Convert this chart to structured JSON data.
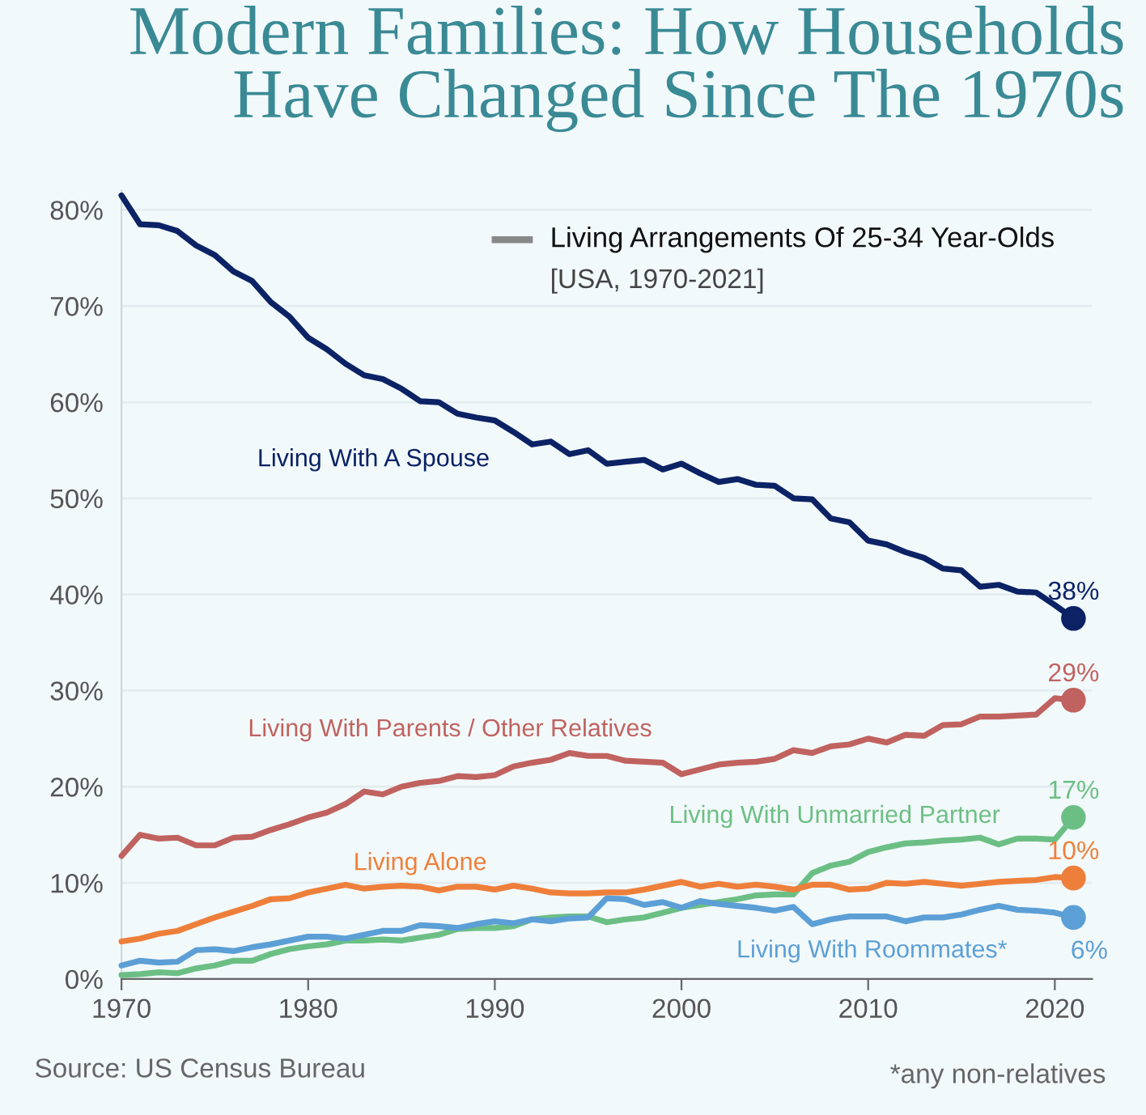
{
  "chart_data": {
    "type": "line",
    "title": "Modern Families: How Households\nHave Changed Since The 1970s",
    "subtitle": "Living Arrangements Of 25-34 Year-Olds",
    "annotations": [
      "[USA, 1970-2021]",
      "Source: US Census Bureau",
      "*any non-relatives"
    ],
    "x": [
      1970,
      1971,
      1972,
      1973,
      1974,
      1975,
      1976,
      1977,
      1978,
      1979,
      1980,
      1981,
      1982,
      1983,
      1984,
      1985,
      1986,
      1987,
      1988,
      1989,
      1990,
      1991,
      1992,
      1993,
      1994,
      1995,
      1996,
      1997,
      1998,
      1999,
      2000,
      2001,
      2002,
      2003,
      2004,
      2005,
      2006,
      2007,
      2008,
      2009,
      2010,
      2011,
      2012,
      2013,
      2014,
      2015,
      2016,
      2017,
      2018,
      2019,
      2020,
      2021
    ],
    "xlim": [
      1970,
      2022
    ],
    "xticks": [
      1970,
      1980,
      1990,
      2000,
      2010,
      2020
    ],
    "ylim": [
      0,
      82
    ],
    "yticks": [
      {
        "value": 0,
        "label": "0%"
      },
      {
        "value": 10,
        "label": "10%"
      },
      {
        "value": 20,
        "label": "20%"
      },
      {
        "value": 30,
        "label": "30%"
      },
      {
        "value": 40,
        "label": "40%"
      },
      {
        "value": 50,
        "label": "50%"
      },
      {
        "value": 60,
        "label": "60%"
      },
      {
        "value": 70,
        "label": "70%"
      },
      {
        "value": 80,
        "label": "80%"
      }
    ],
    "grid": "y",
    "legend": false,
    "line_style": "solid",
    "series": [
      {
        "name": "Living With A Spouse",
        "color": "#0b2265",
        "values": [
          81.5,
          78.5,
          78.4,
          77.8,
          76.3,
          75.3,
          73.6,
          72.6,
          70.4,
          68.9,
          66.7,
          65.5,
          64.0,
          62.8,
          62.4,
          61.4,
          60.1,
          60.0,
          58.8,
          58.4,
          58.1,
          56.9,
          55.6,
          55.9,
          54.6,
          55.0,
          53.6,
          53.8,
          54.0,
          53.0,
          53.6,
          52.6,
          51.7,
          52.0,
          51.4,
          51.3,
          50.0,
          49.9,
          47.9,
          47.5,
          45.6,
          45.2,
          44.4,
          43.8,
          42.7,
          42.5,
          40.8,
          41.0,
          40.3,
          40.2,
          38.9,
          37.5
        ],
        "value_labels": [
          null,
          null,
          null,
          null,
          null,
          null,
          null,
          null,
          null,
          null,
          null,
          null,
          null,
          null,
          null,
          null,
          null,
          null,
          null,
          null,
          null,
          null,
          null,
          null,
          null,
          null,
          null,
          null,
          null,
          null,
          null,
          null,
          null,
          null,
          null,
          null,
          null,
          null,
          null,
          null,
          null,
          null,
          null,
          null,
          null,
          null,
          null,
          null,
          null,
          null,
          null,
          "38%"
        ]
      },
      {
        "name": "Living With Parents / Other Relatives",
        "color": "#c0625f",
        "values": [
          12.8,
          15.0,
          14.6,
          14.7,
          13.9,
          13.9,
          14.7,
          14.8,
          15.5,
          16.1,
          16.8,
          17.3,
          18.2,
          19.5,
          19.2,
          20.0,
          20.4,
          20.6,
          21.1,
          21.0,
          21.2,
          22.1,
          22.5,
          22.8,
          23.5,
          23.2,
          23.2,
          22.7,
          22.6,
          22.5,
          21.3,
          21.8,
          22.3,
          22.5,
          22.6,
          22.9,
          23.8,
          23.5,
          24.2,
          24.4,
          25.0,
          24.6,
          25.4,
          25.3,
          26.4,
          26.5,
          27.3,
          27.3,
          27.4,
          27.5,
          29.2,
          29.0
        ],
        "value_labels": [
          null,
          null,
          null,
          null,
          null,
          null,
          null,
          null,
          null,
          null,
          null,
          null,
          null,
          null,
          null,
          null,
          null,
          null,
          null,
          null,
          null,
          null,
          null,
          null,
          null,
          null,
          null,
          null,
          null,
          null,
          null,
          null,
          null,
          null,
          null,
          null,
          null,
          null,
          null,
          null,
          null,
          null,
          null,
          null,
          null,
          null,
          null,
          null,
          null,
          null,
          null,
          "29%"
        ]
      },
      {
        "name": "Living With Unmarried Partner",
        "color": "#6cbf84",
        "values": [
          0.4,
          0.5,
          0.7,
          0.6,
          1.1,
          1.4,
          1.9,
          1.9,
          2.6,
          3.1,
          3.4,
          3.6,
          4.0,
          4.0,
          4.1,
          4.0,
          4.3,
          4.6,
          5.2,
          5.3,
          5.3,
          5.5,
          6.2,
          6.4,
          6.5,
          6.5,
          5.9,
          6.2,
          6.4,
          6.9,
          7.4,
          7.7,
          8.0,
          8.3,
          8.7,
          8.8,
          8.8,
          11.0,
          11.8,
          12.2,
          13.2,
          13.7,
          14.1,
          14.2,
          14.4,
          14.5,
          14.7,
          14.0,
          14.6,
          14.6,
          14.5,
          16.8
        ],
        "value_labels": [
          null,
          null,
          null,
          null,
          null,
          null,
          null,
          null,
          null,
          null,
          null,
          null,
          null,
          null,
          null,
          null,
          null,
          null,
          null,
          null,
          null,
          null,
          null,
          null,
          null,
          null,
          null,
          null,
          null,
          null,
          null,
          null,
          null,
          null,
          null,
          null,
          null,
          null,
          null,
          null,
          null,
          null,
          null,
          null,
          null,
          null,
          null,
          null,
          null,
          null,
          null,
          "17%"
        ]
      },
      {
        "name": "Living Alone",
        "color": "#ee7f3a",
        "values": [
          3.9,
          4.2,
          4.7,
          5.0,
          5.7,
          6.4,
          7.0,
          7.6,
          8.3,
          8.4,
          9.0,
          9.4,
          9.8,
          9.4,
          9.6,
          9.7,
          9.6,
          9.2,
          9.6,
          9.6,
          9.3,
          9.7,
          9.4,
          9.0,
          8.9,
          8.9,
          9.0,
          9.0,
          9.3,
          9.7,
          10.1,
          9.6,
          9.9,
          9.6,
          9.8,
          9.6,
          9.3,
          9.8,
          9.8,
          9.3,
          9.4,
          10.0,
          9.9,
          10.1,
          9.9,
          9.7,
          9.9,
          10.1,
          10.2,
          10.3,
          10.6,
          10.5
        ],
        "value_labels": [
          null,
          null,
          null,
          null,
          null,
          null,
          null,
          null,
          null,
          null,
          null,
          null,
          null,
          null,
          null,
          null,
          null,
          null,
          null,
          null,
          null,
          null,
          null,
          null,
          null,
          null,
          null,
          null,
          null,
          null,
          null,
          null,
          null,
          null,
          null,
          null,
          null,
          null,
          null,
          null,
          null,
          null,
          null,
          null,
          null,
          null,
          null,
          null,
          null,
          null,
          null,
          "10%"
        ]
      },
      {
        "name": "Living With Roommates*",
        "color": "#5c9fd6",
        "values": [
          1.4,
          1.9,
          1.7,
          1.8,
          3.0,
          3.1,
          2.9,
          3.3,
          3.6,
          4.0,
          4.4,
          4.4,
          4.2,
          4.6,
          5.0,
          5.0,
          5.6,
          5.5,
          5.3,
          5.7,
          6.0,
          5.8,
          6.2,
          6.0,
          6.3,
          6.4,
          8.4,
          8.3,
          7.7,
          8.0,
          7.4,
          8.1,
          7.8,
          7.6,
          7.4,
          7.1,
          7.5,
          5.7,
          6.2,
          6.5,
          6.5,
          6.5,
          6.0,
          6.4,
          6.4,
          6.7,
          7.2,
          7.6,
          7.2,
          7.1,
          6.9,
          6.4
        ],
        "value_labels": [
          null,
          null,
          null,
          null,
          null,
          null,
          null,
          null,
          null,
          null,
          null,
          null,
          null,
          null,
          null,
          null,
          null,
          null,
          null,
          null,
          null,
          null,
          null,
          null,
          null,
          null,
          null,
          null,
          null,
          null,
          null,
          null,
          null,
          null,
          null,
          null,
          null,
          null,
          null,
          null,
          null,
          null,
          null,
          null,
          null,
          null,
          null,
          null,
          null,
          null,
          null,
          "6%"
        ]
      }
    ]
  }
}
